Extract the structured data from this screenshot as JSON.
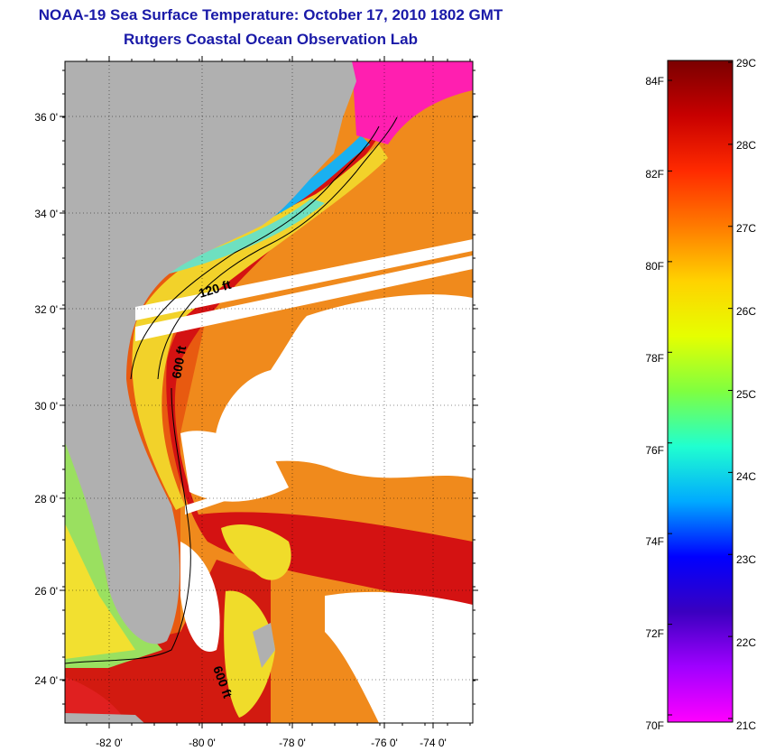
{
  "header": {
    "title": "NOAA-19 Sea Surface Temperature:  October 17, 2010 1802 GMT",
    "subtitle": "Rutgers Coastal Ocean Observation Lab"
  },
  "map": {
    "lat_ticks": [
      "36 0'",
      "34 0'",
      "32 0'",
      "30 0'",
      "28 0'",
      "26 0'",
      "24 0'"
    ],
    "lon_ticks": [
      "-82 0'",
      "-80 0'",
      "-78 0'",
      "-76 0'",
      "-74 0'"
    ],
    "isobath_labels": [
      "120 ft",
      "600 ft",
      "600 ft"
    ],
    "colors": {
      "land": "#b0b0b0",
      "cloud": "#ffffff",
      "gulf_stream": "#d81414",
      "warm": "#f28a1a",
      "coastal": "#2fd6e0"
    }
  },
  "colorbar": {
    "fahrenheit_labels": [
      "84F",
      "82F",
      "80F",
      "78F",
      "76F",
      "74F",
      "72F",
      "70F"
    ],
    "celsius_labels": [
      "29C",
      "28C",
      "27C",
      "26C",
      "25C",
      "24C",
      "23C",
      "22C",
      "21C"
    ],
    "gradient_colors": [
      "#7a0000",
      "#c80000",
      "#ff2a00",
      "#ff7a00",
      "#ffd200",
      "#e6ff00",
      "#7fff40",
      "#20ffd0",
      "#00aaff",
      "#0000ff",
      "#3a00c0",
      "#a000ff",
      "#ff00ff"
    ]
  }
}
